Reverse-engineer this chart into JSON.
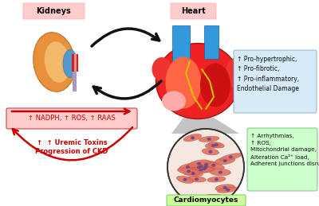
{
  "bg_color": "#ffffff",
  "kidneys_label": "Kidneys",
  "heart_label": "Heart",
  "cardiomyocytes_label": "Cardiomyocytes",
  "kidneys_label_bg": "#ffcccc",
  "heart_label_bg": "#ffcccc",
  "cardiomyocytes_label_bg": "#ccff99",
  "red_box_text": "↑ NADPH, ↑ ROS, ↑ RAAS",
  "red_box_bg": "#ffcccc",
  "uremic_text_line1": "↑  ↑ Uremic Toxins",
  "uremic_text_line2": "Progression of CKD",
  "blue_box_lines": [
    "↑ Pro-hypertrophic,",
    "↑ Pro-fibrotic,",
    "↑ Pro-inflammatory,",
    "Endothelial Damage"
  ],
  "blue_box_bg": "#d6eaf8",
  "green_box_lines": [
    "↑ Arrhythmias,",
    "↑ ROS,",
    "Mitochondrial damage,",
    "Alteration Ca²⁺ load,",
    "Adherent junctions disruption"
  ],
  "green_box_bg": "#ccffcc",
  "arrow_black": "#111111",
  "arrow_red": "#cc0000",
  "text_red": "#cc0000",
  "text_black": "#111111"
}
